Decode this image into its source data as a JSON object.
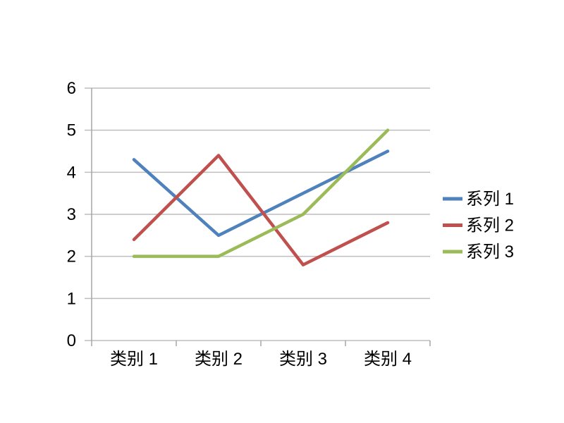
{
  "chart_data": {
    "type": "line",
    "title": "",
    "xlabel": "",
    "ylabel": "",
    "categories": [
      "类别 1",
      "类别 2",
      "类别 3",
      "类别 4"
    ],
    "series": [
      {
        "name": "系列 1",
        "color": "#4F81BD",
        "values": [
          4.3,
          2.5,
          3.5,
          4.5
        ]
      },
      {
        "name": "系列 2",
        "color": "#C0504D",
        "values": [
          2.4,
          4.4,
          1.8,
          2.8
        ]
      },
      {
        "name": "系列 3",
        "color": "#9BBB59",
        "values": [
          2.0,
          2.0,
          3.0,
          5.0
        ]
      }
    ],
    "ylim": [
      0,
      6
    ],
    "ytick_step": 1,
    "ytick_labels": [
      "0",
      "1",
      "2",
      "3",
      "4",
      "5",
      "6"
    ],
    "grid": true,
    "legend_position": "right",
    "colors": {
      "background": "#FFFFFF",
      "gridline": "#BEBEBE",
      "axis": "#A6A6A6",
      "text": "#000000"
    }
  }
}
